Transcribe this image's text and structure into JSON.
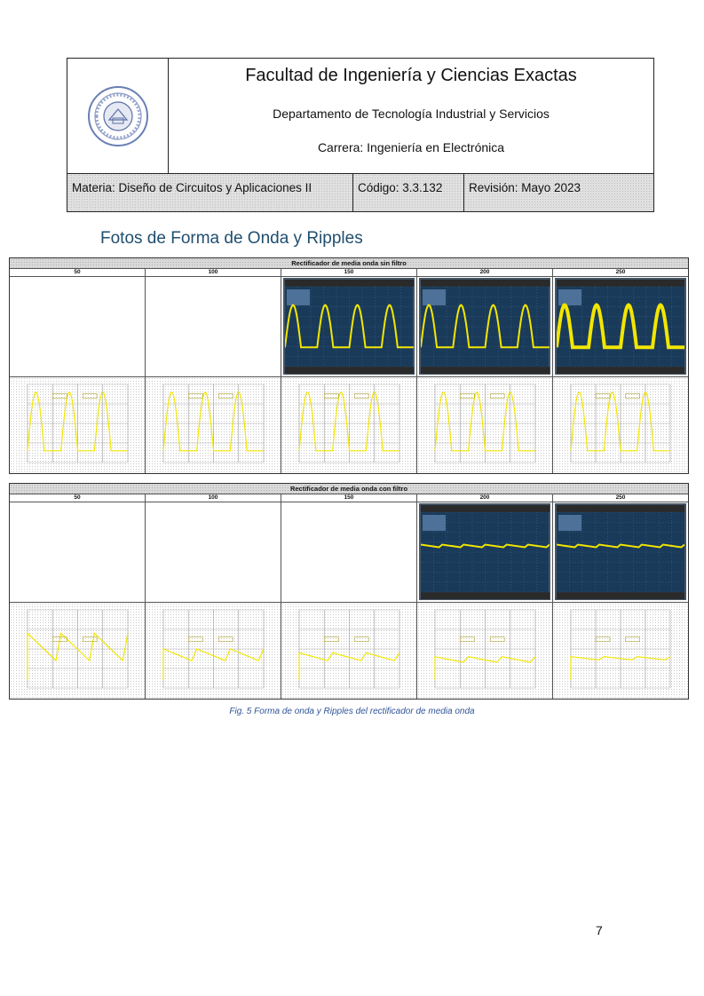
{
  "header": {
    "institution": "Facultad de Ingeniería y Ciencias Exactas",
    "department": "Departamento de Tecnología Industrial y Servicios",
    "career": "Carrera: Ingeniería en Electrónica",
    "subject": "Materia: Diseño de Circuitos y Aplicaciones II",
    "code": "Código: 3.3.132",
    "revision": "Revisión: Mayo 2023",
    "logo_icon": "university-seal-icon"
  },
  "section_title": "Fotos de Forma de Onda y Ripples",
  "tables": [
    {
      "title": "Rectificador de media onda sin filtro",
      "columns": [
        "50",
        "100",
        "150",
        "200",
        "250"
      ],
      "scope_photos": [
        false,
        false,
        true,
        true,
        true
      ],
      "scope_trace": "half-wave",
      "sim_trace": "half-wave"
    },
    {
      "title": "Rectificador de media onda con filtro",
      "columns": [
        "50",
        "100",
        "150",
        "200",
        "250"
      ],
      "scope_photos": [
        false,
        false,
        false,
        true,
        true
      ],
      "scope_trace": "ripple",
      "sim_trace": "ripple"
    }
  ],
  "caption": "Fig. 5 Forma de onda y Ripples del rectificador de media onda",
  "page_number": "7",
  "colors": {
    "trace": "#f2e600",
    "scope_bg": "#1a3a5a",
    "title_blue": "#1f4e6e",
    "caption_blue": "#2f5597"
  }
}
